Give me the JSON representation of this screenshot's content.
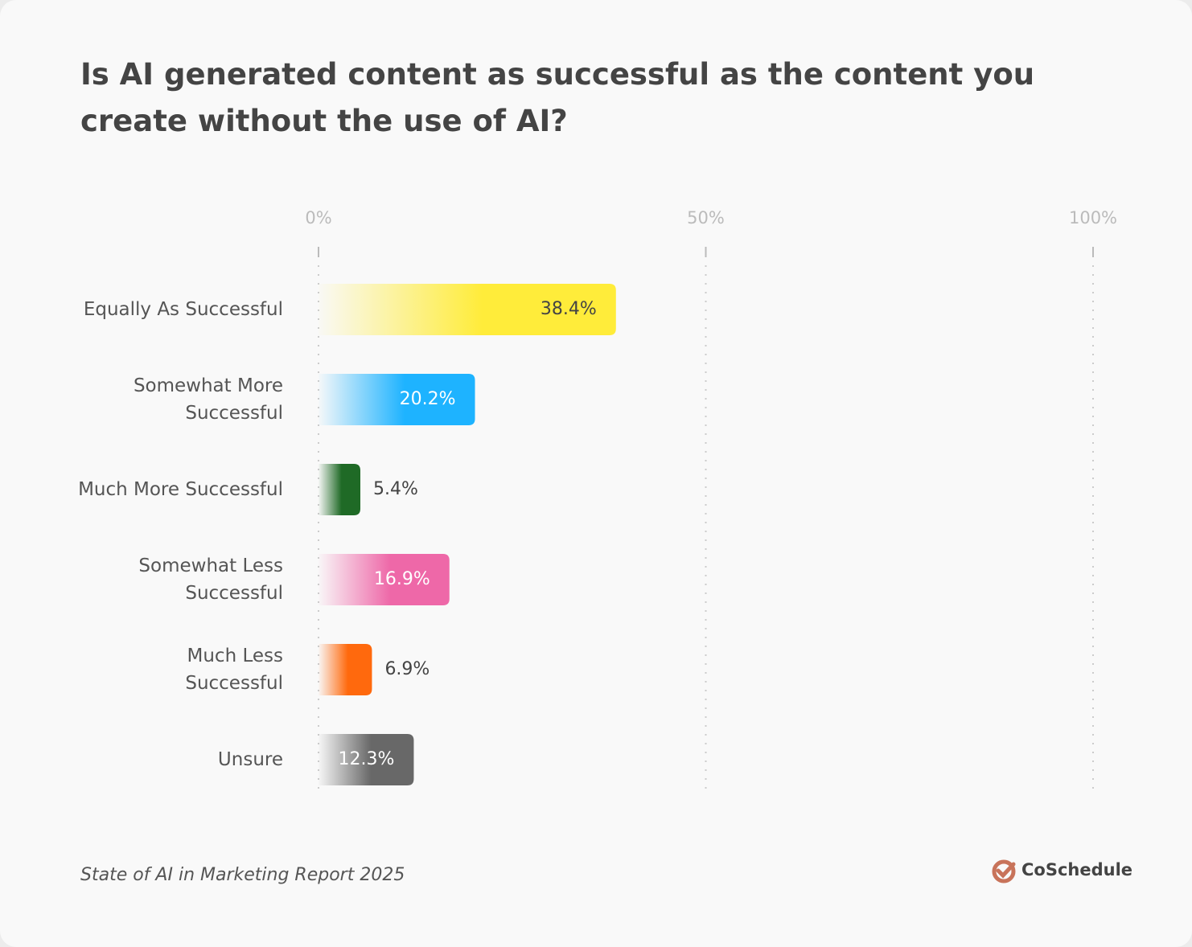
{
  "chart_data": {
    "type": "bar",
    "orientation": "horizontal",
    "title": "Is AI generated content as successful as the content you create without the use of AI?",
    "categories": [
      "Equally As Successful",
      "Somewhat More\nSuccessful",
      "Much More Successful",
      "Somewhat Less\nSuccessful",
      "Much Less\nSuccessful",
      "Unsure"
    ],
    "values": [
      38.4,
      20.2,
      5.4,
      16.9,
      6.9,
      12.3
    ],
    "value_labels": [
      "38.4%",
      "20.2%",
      "5.4%",
      "16.9%",
      "6.9%",
      "12.3%"
    ],
    "colors": [
      "#ffec3a",
      "#1eb3ff",
      "#1f6a26",
      "#ee68a8",
      "#ff690d",
      "#686868"
    ],
    "xlim": [
      0,
      100
    ],
    "xticks": [
      {
        "value": 0,
        "label": "0%"
      },
      {
        "value": 50,
        "label": "50%"
      },
      {
        "value": 100,
        "label": "100%"
      }
    ],
    "grid": true,
    "source": "State of AI in Marketing Report 2025",
    "logo": "CoSchedule"
  }
}
